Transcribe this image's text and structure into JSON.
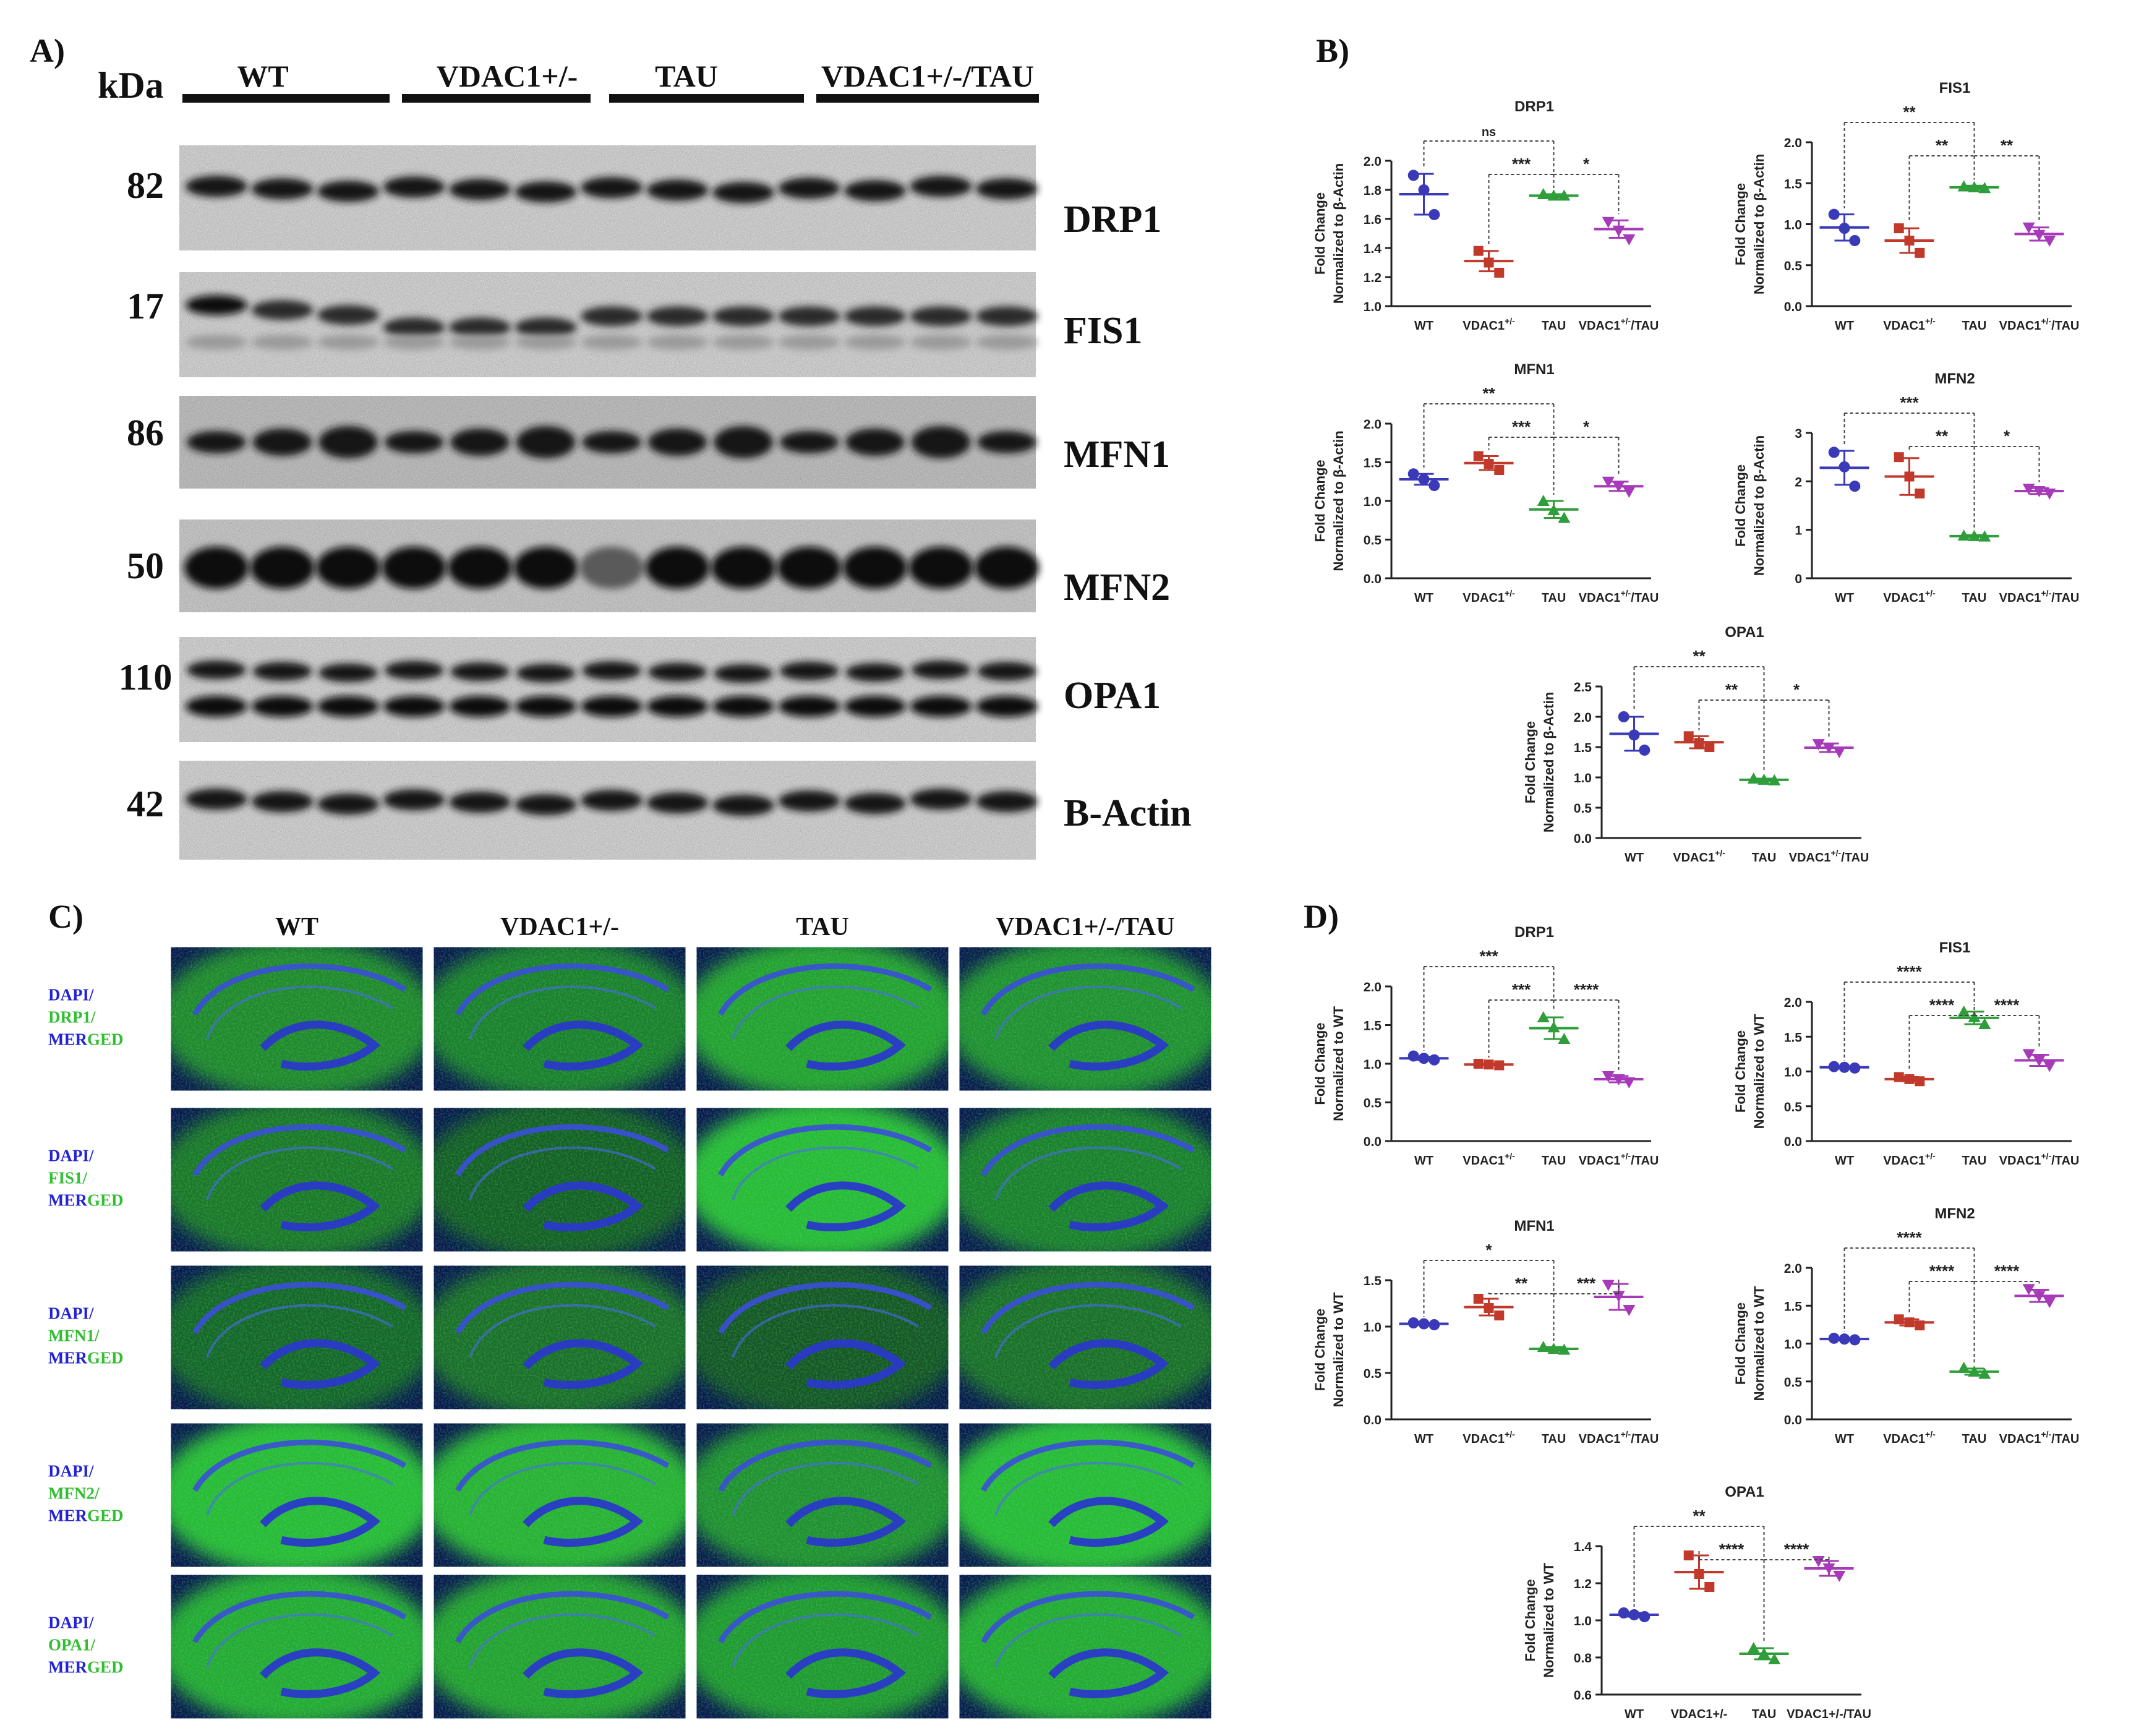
{
  "panels": {
    "A": "A)",
    "B": "B)",
    "C": "C)",
    "D": "D)"
  },
  "blot": {
    "kda_label": "kDa",
    "groups": [
      "WT",
      "VDAC1+/-",
      "TAU",
      "VDAC1+/-/TAU"
    ],
    "rows": [
      {
        "kda": "82",
        "name": "DRP1",
        "style": "single"
      },
      {
        "kda": "17",
        "name": "FIS1",
        "style": "smear"
      },
      {
        "kda": "86",
        "name": "MFN1",
        "style": "noisy"
      },
      {
        "kda": "50",
        "name": "MFN2",
        "style": "thick"
      },
      {
        "kda": "110",
        "name": "OPA1",
        "style": "double"
      },
      {
        "kda": "42",
        "name": "B-Actin",
        "style": "single"
      }
    ]
  },
  "micrographs": {
    "columns": [
      "WT",
      "VDAC1+/-",
      "TAU",
      "VDAC1+/-/TAU"
    ],
    "rows": [
      {
        "dapi": "DAPI/",
        "marker": "DRP1/",
        "merged_a": "MER",
        "merged_b": "GED",
        "brightness": [
          0.55,
          0.5,
          0.7,
          0.6
        ]
      },
      {
        "dapi": "DAPI/",
        "marker": "FIS1/",
        "merged_a": "MER",
        "merged_b": "GED",
        "brightness": [
          0.45,
          0.3,
          0.85,
          0.5
        ]
      },
      {
        "dapi": "DAPI/",
        "marker": "MFN1/",
        "merged_a": "MER",
        "merged_b": "GED",
        "brightness": [
          0.35,
          0.4,
          0.25,
          0.4
        ]
      },
      {
        "dapi": "DAPI/",
        "marker": "MFN2/",
        "merged_a": "MER",
        "merged_b": "GED",
        "brightness": [
          0.85,
          0.8,
          0.6,
          0.85
        ]
      },
      {
        "dapi": "DAPI/",
        "marker": "OPA1/",
        "merged_a": "MER",
        "merged_b": "GED",
        "brightness": [
          0.75,
          0.7,
          0.65,
          0.75
        ]
      }
    ]
  },
  "colors": {
    "wt": "#3a3ab8",
    "vdac1": "#c0392b",
    "tau": "#2e9d3a",
    "combo": "#a63ab8",
    "dapi_text": "#2323d6",
    "marker_text": "#2fbf2f"
  },
  "chart_data": [
    {
      "panel": "B",
      "type": "scatter",
      "title": "DRP1",
      "ylabel": "Fold  Change\nNormalized to β-Actin",
      "categories": [
        "WT",
        "VDAC1+/-",
        "TAU",
        "VDAC1+/-/TAU"
      ],
      "category_labels": [
        {
          "base": "WT",
          "sup": ""
        },
        {
          "base": "VDAC1",
          "sup": "+/-"
        },
        {
          "base": "TAU",
          "sup": ""
        },
        {
          "base": "VDAC1",
          "sup": "+/-",
          "suffix": "/TAU"
        }
      ],
      "yticks": [
        "1.0",
        "1.2",
        "1.4",
        "1.6",
        "1.8",
        "2.0"
      ],
      "ylim": [
        1.0,
        2.0
      ],
      "series": [
        {
          "points": [
            1.9,
            1.8,
            1.63
          ],
          "mean": 1.77,
          "sd": 0.14
        },
        {
          "points": [
            1.38,
            1.3,
            1.23
          ],
          "mean": 1.31,
          "sd": 0.07
        },
        {
          "points": [
            1.77,
            1.76,
            1.76
          ],
          "mean": 1.76,
          "sd": 0.01
        },
        {
          "points": [
            1.58,
            1.52,
            1.46
          ],
          "mean": 1.53,
          "sd": 0.06
        }
      ],
      "comparisons": [
        {
          "from": 0,
          "to": 2,
          "label": "ns"
        },
        {
          "from": 1,
          "to": 2,
          "label": "***"
        },
        {
          "from": 2,
          "to": 3,
          "label": "*"
        }
      ]
    },
    {
      "panel": "B",
      "type": "scatter",
      "title": "FIS1",
      "ylabel": "Fold  Change\nNormalized to β-Actin",
      "categories": [
        "WT",
        "VDAC1+/-",
        "TAU",
        "VDAC1+/-/TAU"
      ],
      "category_labels": [
        {
          "base": "WT",
          "sup": ""
        },
        {
          "base": "VDAC1",
          "sup": "+/-"
        },
        {
          "base": "TAU",
          "sup": ""
        },
        {
          "base": "VDAC1",
          "sup": "+/-",
          "suffix": "/TAU"
        }
      ],
      "yticks": [
        "0.0",
        "0.5",
        "1.0",
        "1.5",
        "2.0"
      ],
      "ylim": [
        0,
        2.0
      ],
      "series": [
        {
          "points": [
            1.12,
            0.95,
            0.8
          ],
          "mean": 0.96,
          "sd": 0.16
        },
        {
          "points": [
            0.95,
            0.8,
            0.65
          ],
          "mean": 0.8,
          "sd": 0.15
        },
        {
          "points": [
            1.46,
            1.45,
            1.44
          ],
          "mean": 1.45,
          "sd": 0.02
        },
        {
          "points": [
            0.96,
            0.87,
            0.8
          ],
          "mean": 0.88,
          "sd": 0.08
        }
      ],
      "comparisons": [
        {
          "from": 0,
          "to": 2,
          "label": "**"
        },
        {
          "from": 1,
          "to": 2,
          "label": "**"
        },
        {
          "from": 2,
          "to": 3,
          "label": "**"
        }
      ]
    },
    {
      "panel": "B",
      "type": "scatter",
      "title": "MFN1",
      "ylabel": "Fold  Change\nNormalized to β-Actin",
      "categories": [
        "WT",
        "VDAC1+/-",
        "TAU",
        "VDAC1+/-/TAU"
      ],
      "category_labels": [
        {
          "base": "WT",
          "sup": ""
        },
        {
          "base": "VDAC1",
          "sup": "+/-"
        },
        {
          "base": "TAU",
          "sup": ""
        },
        {
          "base": "VDAC1",
          "sup": "+/-",
          "suffix": "/TAU"
        }
      ],
      "yticks": [
        "0.0",
        "0.5",
        "1.0",
        "1.5",
        "2.0"
      ],
      "ylim": [
        0,
        2.0
      ],
      "series": [
        {
          "points": [
            1.35,
            1.28,
            1.2
          ],
          "mean": 1.28,
          "sd": 0.07
        },
        {
          "points": [
            1.58,
            1.48,
            1.4
          ],
          "mean": 1.49,
          "sd": 0.09
        },
        {
          "points": [
            1.0,
            0.88,
            0.78
          ],
          "mean": 0.89,
          "sd": 0.11
        },
        {
          "points": [
            1.25,
            1.19,
            1.12
          ],
          "mean": 1.19,
          "sd": 0.06
        }
      ],
      "comparisons": [
        {
          "from": 0,
          "to": 2,
          "label": "**"
        },
        {
          "from": 1,
          "to": 2,
          "label": "***"
        },
        {
          "from": 2,
          "to": 3,
          "label": "*"
        }
      ]
    },
    {
      "panel": "B",
      "type": "scatter",
      "title": "MFN2",
      "ylabel": "Fold  Change\nNormalized to β-Actin",
      "categories": [
        "WT",
        "VDAC1+/-",
        "TAU",
        "VDAC1+/-/TAU"
      ],
      "category_labels": [
        {
          "base": "WT",
          "sup": ""
        },
        {
          "base": "VDAC1",
          "sup": "+/-"
        },
        {
          "base": "TAU",
          "sup": ""
        },
        {
          "base": "VDAC1",
          "sup": "+/-",
          "suffix": "/TAU"
        }
      ],
      "yticks": [
        "0",
        "1",
        "2",
        "3"
      ],
      "ylim": [
        0,
        3
      ],
      "series": [
        {
          "points": [
            2.6,
            2.3,
            1.9
          ],
          "mean": 2.28,
          "sd": 0.35
        },
        {
          "points": [
            2.5,
            2.1,
            1.75
          ],
          "mean": 2.1,
          "sd": 0.38
        },
        {
          "points": [
            0.88,
            0.87,
            0.86
          ],
          "mean": 0.87,
          "sd": 0.02
        },
        {
          "points": [
            1.85,
            1.8,
            1.75
          ],
          "mean": 1.8,
          "sd": 0.06
        }
      ],
      "comparisons": [
        {
          "from": 0,
          "to": 2,
          "label": "***"
        },
        {
          "from": 1,
          "to": 2,
          "label": "**"
        },
        {
          "from": 2,
          "to": 3,
          "label": "*"
        }
      ]
    },
    {
      "panel": "B",
      "type": "scatter",
      "title": "OPA1",
      "ylabel": "Fold  Change\nNormalized to β-Actin",
      "categories": [
        "WT",
        "VDAC1+/-",
        "TAU",
        "VDAC1+/-/TAU"
      ],
      "category_labels": [
        {
          "base": "WT",
          "sup": ""
        },
        {
          "base": "VDAC1",
          "sup": "+/-"
        },
        {
          "base": "TAU",
          "sup": ""
        },
        {
          "base": "VDAC1",
          "sup": "+/-",
          "suffix": "/TAU"
        }
      ],
      "yticks": [
        "0.0",
        "0.5",
        "1.0",
        "1.5",
        "2.0",
        "2.5"
      ],
      "ylim": [
        0,
        2.5
      ],
      "series": [
        {
          "points": [
            2.0,
            1.7,
            1.45
          ],
          "mean": 1.72,
          "sd": 0.28
        },
        {
          "points": [
            1.68,
            1.57,
            1.5
          ],
          "mean": 1.58,
          "sd": 0.1
        },
        {
          "points": [
            0.98,
            0.96,
            0.95
          ],
          "mean": 0.96,
          "sd": 0.02
        },
        {
          "points": [
            1.55,
            1.49,
            1.42
          ],
          "mean": 1.49,
          "sd": 0.07
        }
      ],
      "comparisons": [
        {
          "from": 0,
          "to": 2,
          "label": "**"
        },
        {
          "from": 1,
          "to": 2,
          "label": "**"
        },
        {
          "from": 2,
          "to": 3,
          "label": "*"
        }
      ]
    },
    {
      "panel": "D",
      "type": "scatter",
      "title": "DRP1",
      "ylabel": "Fold  Change\nNormalized to WT",
      "categories": [
        "WT",
        "VDAC1+/-",
        "TAU",
        "VDAC1+/-/TAU"
      ],
      "category_labels": [
        {
          "base": "WT",
          "sup": ""
        },
        {
          "base": "VDAC1",
          "sup": "+/-"
        },
        {
          "base": "TAU",
          "sup": ""
        },
        {
          "base": "VDAC1",
          "sup": "+/-",
          "suffix": "/TAU"
        }
      ],
      "yticks": [
        "0.0",
        "0.5",
        "1.0",
        "1.5",
        "2.0"
      ],
      "ylim": [
        0,
        2.0
      ],
      "series": [
        {
          "points": [
            1.1,
            1.07,
            1.05
          ],
          "mean": 1.07,
          "sd": 0.02
        },
        {
          "points": [
            1.0,
            0.99,
            0.98
          ],
          "mean": 0.99,
          "sd": 0.01
        },
        {
          "points": [
            1.6,
            1.47,
            1.32
          ],
          "mean": 1.46,
          "sd": 0.14
        },
        {
          "points": [
            0.84,
            0.8,
            0.76
          ],
          "mean": 0.8,
          "sd": 0.04
        }
      ],
      "comparisons": [
        {
          "from": 0,
          "to": 2,
          "label": "***"
        },
        {
          "from": 1,
          "to": 2,
          "label": "***"
        },
        {
          "from": 2,
          "to": 3,
          "label": "****"
        }
      ]
    },
    {
      "panel": "D",
      "type": "scatter",
      "title": "FIS1",
      "ylabel": "Fold  Change\nNormalized to WT",
      "categories": [
        "WT",
        "VDAC1+/-",
        "TAU",
        "VDAC1+/-/TAU"
      ],
      "category_labels": [
        {
          "base": "WT",
          "sup": ""
        },
        {
          "base": "VDAC1",
          "sup": "+/-"
        },
        {
          "base": "TAU",
          "sup": ""
        },
        {
          "base": "VDAC1",
          "sup": "+/-",
          "suffix": "/TAU"
        }
      ],
      "yticks": [
        "0.0",
        "0.5",
        "1.0",
        "1.5",
        "2.0"
      ],
      "ylim": [
        0,
        2.0
      ],
      "series": [
        {
          "points": [
            1.07,
            1.06,
            1.05
          ],
          "mean": 1.06,
          "sd": 0.01
        },
        {
          "points": [
            0.92,
            0.89,
            0.86
          ],
          "mean": 0.89,
          "sd": 0.03
        },
        {
          "points": [
            1.86,
            1.78,
            1.68
          ],
          "mean": 1.77,
          "sd": 0.09
        },
        {
          "points": [
            1.25,
            1.16,
            1.08
          ],
          "mean": 1.16,
          "sd": 0.08
        }
      ],
      "comparisons": [
        {
          "from": 0,
          "to": 2,
          "label": "****"
        },
        {
          "from": 1,
          "to": 2,
          "label": "****"
        },
        {
          "from": 2,
          "to": 3,
          "label": "****"
        }
      ]
    },
    {
      "panel": "D",
      "type": "scatter",
      "title": "MFN1",
      "ylabel": "Fold  Change\nNormalized to WT",
      "categories": [
        "WT",
        "VDAC1+/-",
        "TAU",
        "VDAC1+/-/TAU"
      ],
      "category_labels": [
        {
          "base": "WT",
          "sup": ""
        },
        {
          "base": "VDAC1",
          "sup": "+/-"
        },
        {
          "base": "TAU",
          "sup": ""
        },
        {
          "base": "VDAC1",
          "sup": "+/-",
          "suffix": "/TAU"
        }
      ],
      "yticks": [
        "0.0",
        "0.5",
        "1.0",
        "1.5"
      ],
      "ylim": [
        0,
        1.5
      ],
      "series": [
        {
          "points": [
            1.04,
            1.03,
            1.02
          ],
          "mean": 1.03,
          "sd": 0.01
        },
        {
          "points": [
            1.3,
            1.2,
            1.12
          ],
          "mean": 1.21,
          "sd": 0.09
        },
        {
          "points": [
            0.78,
            0.76,
            0.75
          ],
          "mean": 0.76,
          "sd": 0.02
        },
        {
          "points": [
            1.45,
            1.33,
            1.18
          ],
          "mean": 1.32,
          "sd": 0.14
        }
      ],
      "comparisons": [
        {
          "from": 0,
          "to": 2,
          "label": "*"
        },
        {
          "from": 1,
          "to": 2,
          "label": "**"
        },
        {
          "from": 2,
          "to": 3,
          "label": "***"
        }
      ]
    },
    {
      "panel": "D",
      "type": "scatter",
      "title": "MFN2",
      "ylabel": "Fold  Change\nNormalized to WT",
      "categories": [
        "WT",
        "VDAC1+/-",
        "TAU",
        "VDAC1+/-/TAU"
      ],
      "category_labels": [
        {
          "base": "WT",
          "sup": ""
        },
        {
          "base": "VDAC1",
          "sup": "+/-"
        },
        {
          "base": "TAU",
          "sup": ""
        },
        {
          "base": "VDAC1",
          "sup": "+/-",
          "suffix": "/TAU"
        }
      ],
      "yticks": [
        "0.0",
        "0.5",
        "1.0",
        "1.5",
        "2.0"
      ],
      "ylim": [
        0,
        2.0
      ],
      "series": [
        {
          "points": [
            1.07,
            1.06,
            1.05
          ],
          "mean": 1.06,
          "sd": 0.01
        },
        {
          "points": [
            1.32,
            1.28,
            1.24
          ],
          "mean": 1.28,
          "sd": 0.04
        },
        {
          "points": [
            0.68,
            0.63,
            0.6
          ],
          "mean": 0.63,
          "sd": 0.04
        },
        {
          "points": [
            1.72,
            1.63,
            1.55
          ],
          "mean": 1.63,
          "sd": 0.08
        }
      ],
      "comparisons": [
        {
          "from": 0,
          "to": 2,
          "label": "****"
        },
        {
          "from": 1,
          "to": 2,
          "label": "****"
        },
        {
          "from": 2,
          "to": 3,
          "label": "****"
        }
      ]
    },
    {
      "panel": "D",
      "type": "scatter",
      "title": "OPA1",
      "ylabel": "Fold  Change\nNormalized to WT",
      "categories": [
        "WT",
        "VDAC1+/-",
        "TAU",
        "VDAC1+/-/TAU"
      ],
      "category_labels": [
        {
          "base": "WT",
          "sup": ""
        },
        {
          "base": "VDAC1+/-",
          "sup": ""
        },
        {
          "base": "TAU",
          "sup": ""
        },
        {
          "base": "VDAC1+/-/TAU",
          "sup": ""
        }
      ],
      "yticks": [
        "0.6",
        "0.8",
        "1.0",
        "1.2",
        "1.4"
      ],
      "ylim": [
        0.6,
        1.4
      ],
      "series": [
        {
          "points": [
            1.04,
            1.03,
            1.02
          ],
          "mean": 1.03,
          "sd": 0.01
        },
        {
          "points": [
            1.35,
            1.25,
            1.18
          ],
          "mean": 1.26,
          "sd": 0.09
        },
        {
          "points": [
            0.85,
            0.82,
            0.79
          ],
          "mean": 0.82,
          "sd": 0.03
        },
        {
          "points": [
            1.32,
            1.28,
            1.24
          ],
          "mean": 1.28,
          "sd": 0.04
        }
      ],
      "comparisons": [
        {
          "from": 0,
          "to": 2,
          "label": "**"
        },
        {
          "from": 1,
          "to": 2,
          "label": "****"
        },
        {
          "from": 2,
          "to": 3,
          "label": "****"
        }
      ]
    }
  ]
}
